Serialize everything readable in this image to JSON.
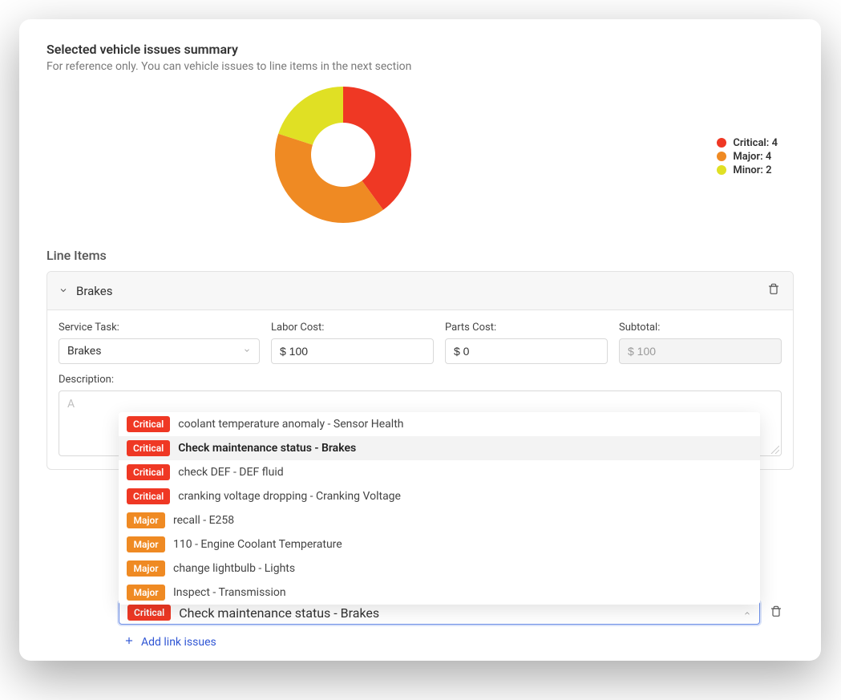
{
  "summary": {
    "title": "Selected vehicle issues summary",
    "subtitle": "For reference only. You can vehicle issues to line items in the next section"
  },
  "chart": {
    "type": "donut",
    "inner_radius": 40,
    "outer_radius": 85,
    "background_color": "#ffffff",
    "slices": [
      {
        "label": "Critical",
        "value": 4,
        "color": "#ef3824"
      },
      {
        "label": "Major",
        "value": 4,
        "color": "#ef8a23"
      },
      {
        "label": "Minor",
        "value": 2,
        "color": "#e0e024"
      }
    ],
    "legend_items": [
      {
        "text": "Critical: 4",
        "color": "#ef3824"
      },
      {
        "text": "Major: 4",
        "color": "#ef8a23"
      },
      {
        "text": "Minor: 2",
        "color": "#e0e024"
      }
    ]
  },
  "line_items_title": "Line Items",
  "line_item": {
    "header": "Brakes",
    "fields": {
      "service_task_label": "Service Task:",
      "service_task_value": "Brakes",
      "labor_label": "Labor Cost:",
      "labor_value": "$ 100",
      "parts_label": "Parts Cost:",
      "parts_value": "$ 0",
      "subtotal_label": "Subtotal:",
      "subtotal_value": "$ 100",
      "description_label": "Description:",
      "description_placeholder": "A"
    }
  },
  "issue_options": [
    {
      "severity": "Critical",
      "color": "#ef3824",
      "text": "coolant temperature anomaly - Sensor Health",
      "selected": false
    },
    {
      "severity": "Critical",
      "color": "#ef3824",
      "text": "Check maintenance status - Brakes",
      "selected": true
    },
    {
      "severity": "Critical",
      "color": "#ef3824",
      "text": "check DEF - DEF fluid",
      "selected": false
    },
    {
      "severity": "Critical",
      "color": "#ef3824",
      "text": "cranking voltage dropping - Cranking Voltage",
      "selected": false
    },
    {
      "severity": "Major",
      "color": "#ef8a23",
      "text": "recall - E258",
      "selected": false
    },
    {
      "severity": "Major",
      "color": "#ef8a23",
      "text": "110 - Engine Coolant Temperature",
      "selected": false
    },
    {
      "severity": "Major",
      "color": "#ef8a23",
      "text": "change lightbulb - Lights",
      "selected": false
    },
    {
      "severity": "Major",
      "color": "#ef8a23",
      "text": "Inspect - Transmission",
      "selected": false
    }
  ],
  "selected_issue": {
    "severity": "Critical",
    "color": "#ef3824",
    "text": "Check maintenance status - Brakes"
  },
  "add_link_label": "Add link issues"
}
